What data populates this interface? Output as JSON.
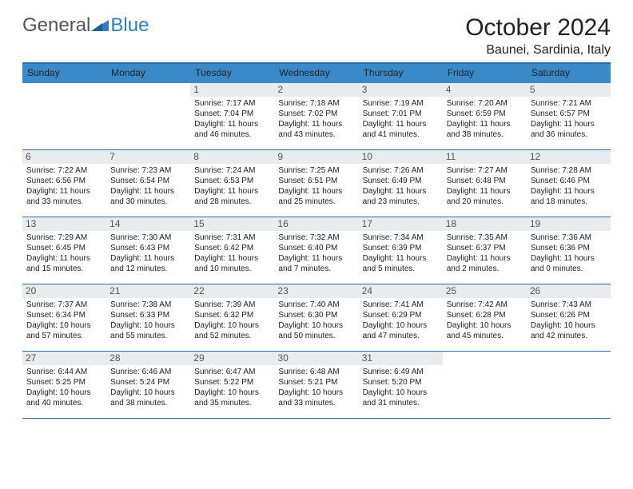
{
  "logo": {
    "text_general": "General",
    "text_blue": "Blue"
  },
  "title": "October 2024",
  "location": "Baunei, Sardinia, Italy",
  "colors": {
    "header_bg": "#3a89c9",
    "header_text": "#ffffff",
    "border": "#2b6ea8",
    "daynum_bg": "#e9ecef",
    "daynum_text": "#555555",
    "body_text": "#222222",
    "logo_gray": "#555555",
    "logo_blue": "#2b7fbf"
  },
  "weekdays": [
    "Sunday",
    "Monday",
    "Tuesday",
    "Wednesday",
    "Thursday",
    "Friday",
    "Saturday"
  ],
  "weeks": [
    [
      {
        "empty": true
      },
      {
        "empty": true
      },
      {
        "day": "1",
        "sunrise": "Sunrise: 7:17 AM",
        "sunset": "Sunset: 7:04 PM",
        "daylight1": "Daylight: 11 hours",
        "daylight2": "and 46 minutes."
      },
      {
        "day": "2",
        "sunrise": "Sunrise: 7:18 AM",
        "sunset": "Sunset: 7:02 PM",
        "daylight1": "Daylight: 11 hours",
        "daylight2": "and 43 minutes."
      },
      {
        "day": "3",
        "sunrise": "Sunrise: 7:19 AM",
        "sunset": "Sunset: 7:01 PM",
        "daylight1": "Daylight: 11 hours",
        "daylight2": "and 41 minutes."
      },
      {
        "day": "4",
        "sunrise": "Sunrise: 7:20 AM",
        "sunset": "Sunset: 6:59 PM",
        "daylight1": "Daylight: 11 hours",
        "daylight2": "and 38 minutes."
      },
      {
        "day": "5",
        "sunrise": "Sunrise: 7:21 AM",
        "sunset": "Sunset: 6:57 PM",
        "daylight1": "Daylight: 11 hours",
        "daylight2": "and 36 minutes."
      }
    ],
    [
      {
        "day": "6",
        "sunrise": "Sunrise: 7:22 AM",
        "sunset": "Sunset: 6:56 PM",
        "daylight1": "Daylight: 11 hours",
        "daylight2": "and 33 minutes."
      },
      {
        "day": "7",
        "sunrise": "Sunrise: 7:23 AM",
        "sunset": "Sunset: 6:54 PM",
        "daylight1": "Daylight: 11 hours",
        "daylight2": "and 30 minutes."
      },
      {
        "day": "8",
        "sunrise": "Sunrise: 7:24 AM",
        "sunset": "Sunset: 6:53 PM",
        "daylight1": "Daylight: 11 hours",
        "daylight2": "and 28 minutes."
      },
      {
        "day": "9",
        "sunrise": "Sunrise: 7:25 AM",
        "sunset": "Sunset: 6:51 PM",
        "daylight1": "Daylight: 11 hours",
        "daylight2": "and 25 minutes."
      },
      {
        "day": "10",
        "sunrise": "Sunrise: 7:26 AM",
        "sunset": "Sunset: 6:49 PM",
        "daylight1": "Daylight: 11 hours",
        "daylight2": "and 23 minutes."
      },
      {
        "day": "11",
        "sunrise": "Sunrise: 7:27 AM",
        "sunset": "Sunset: 6:48 PM",
        "daylight1": "Daylight: 11 hours",
        "daylight2": "and 20 minutes."
      },
      {
        "day": "12",
        "sunrise": "Sunrise: 7:28 AM",
        "sunset": "Sunset: 6:46 PM",
        "daylight1": "Daylight: 11 hours",
        "daylight2": "and 18 minutes."
      }
    ],
    [
      {
        "day": "13",
        "sunrise": "Sunrise: 7:29 AM",
        "sunset": "Sunset: 6:45 PM",
        "daylight1": "Daylight: 11 hours",
        "daylight2": "and 15 minutes."
      },
      {
        "day": "14",
        "sunrise": "Sunrise: 7:30 AM",
        "sunset": "Sunset: 6:43 PM",
        "daylight1": "Daylight: 11 hours",
        "daylight2": "and 12 minutes."
      },
      {
        "day": "15",
        "sunrise": "Sunrise: 7:31 AM",
        "sunset": "Sunset: 6:42 PM",
        "daylight1": "Daylight: 11 hours",
        "daylight2": "and 10 minutes."
      },
      {
        "day": "16",
        "sunrise": "Sunrise: 7:32 AM",
        "sunset": "Sunset: 6:40 PM",
        "daylight1": "Daylight: 11 hours",
        "daylight2": "and 7 minutes."
      },
      {
        "day": "17",
        "sunrise": "Sunrise: 7:34 AM",
        "sunset": "Sunset: 6:39 PM",
        "daylight1": "Daylight: 11 hours",
        "daylight2": "and 5 minutes."
      },
      {
        "day": "18",
        "sunrise": "Sunrise: 7:35 AM",
        "sunset": "Sunset: 6:37 PM",
        "daylight1": "Daylight: 11 hours",
        "daylight2": "and 2 minutes."
      },
      {
        "day": "19",
        "sunrise": "Sunrise: 7:36 AM",
        "sunset": "Sunset: 6:36 PM",
        "daylight1": "Daylight: 11 hours",
        "daylight2": "and 0 minutes."
      }
    ],
    [
      {
        "day": "20",
        "sunrise": "Sunrise: 7:37 AM",
        "sunset": "Sunset: 6:34 PM",
        "daylight1": "Daylight: 10 hours",
        "daylight2": "and 57 minutes."
      },
      {
        "day": "21",
        "sunrise": "Sunrise: 7:38 AM",
        "sunset": "Sunset: 6:33 PM",
        "daylight1": "Daylight: 10 hours",
        "daylight2": "and 55 minutes."
      },
      {
        "day": "22",
        "sunrise": "Sunrise: 7:39 AM",
        "sunset": "Sunset: 6:32 PM",
        "daylight1": "Daylight: 10 hours",
        "daylight2": "and 52 minutes."
      },
      {
        "day": "23",
        "sunrise": "Sunrise: 7:40 AM",
        "sunset": "Sunset: 6:30 PM",
        "daylight1": "Daylight: 10 hours",
        "daylight2": "and 50 minutes."
      },
      {
        "day": "24",
        "sunrise": "Sunrise: 7:41 AM",
        "sunset": "Sunset: 6:29 PM",
        "daylight1": "Daylight: 10 hours",
        "daylight2": "and 47 minutes."
      },
      {
        "day": "25",
        "sunrise": "Sunrise: 7:42 AM",
        "sunset": "Sunset: 6:28 PM",
        "daylight1": "Daylight: 10 hours",
        "daylight2": "and 45 minutes."
      },
      {
        "day": "26",
        "sunrise": "Sunrise: 7:43 AM",
        "sunset": "Sunset: 6:26 PM",
        "daylight1": "Daylight: 10 hours",
        "daylight2": "and 42 minutes."
      }
    ],
    [
      {
        "day": "27",
        "sunrise": "Sunrise: 6:44 AM",
        "sunset": "Sunset: 5:25 PM",
        "daylight1": "Daylight: 10 hours",
        "daylight2": "and 40 minutes."
      },
      {
        "day": "28",
        "sunrise": "Sunrise: 6:46 AM",
        "sunset": "Sunset: 5:24 PM",
        "daylight1": "Daylight: 10 hours",
        "daylight2": "and 38 minutes."
      },
      {
        "day": "29",
        "sunrise": "Sunrise: 6:47 AM",
        "sunset": "Sunset: 5:22 PM",
        "daylight1": "Daylight: 10 hours",
        "daylight2": "and 35 minutes."
      },
      {
        "day": "30",
        "sunrise": "Sunrise: 6:48 AM",
        "sunset": "Sunset: 5:21 PM",
        "daylight1": "Daylight: 10 hours",
        "daylight2": "and 33 minutes."
      },
      {
        "day": "31",
        "sunrise": "Sunrise: 6:49 AM",
        "sunset": "Sunset: 5:20 PM",
        "daylight1": "Daylight: 10 hours",
        "daylight2": "and 31 minutes."
      },
      {
        "empty": true
      },
      {
        "empty": true
      }
    ]
  ]
}
